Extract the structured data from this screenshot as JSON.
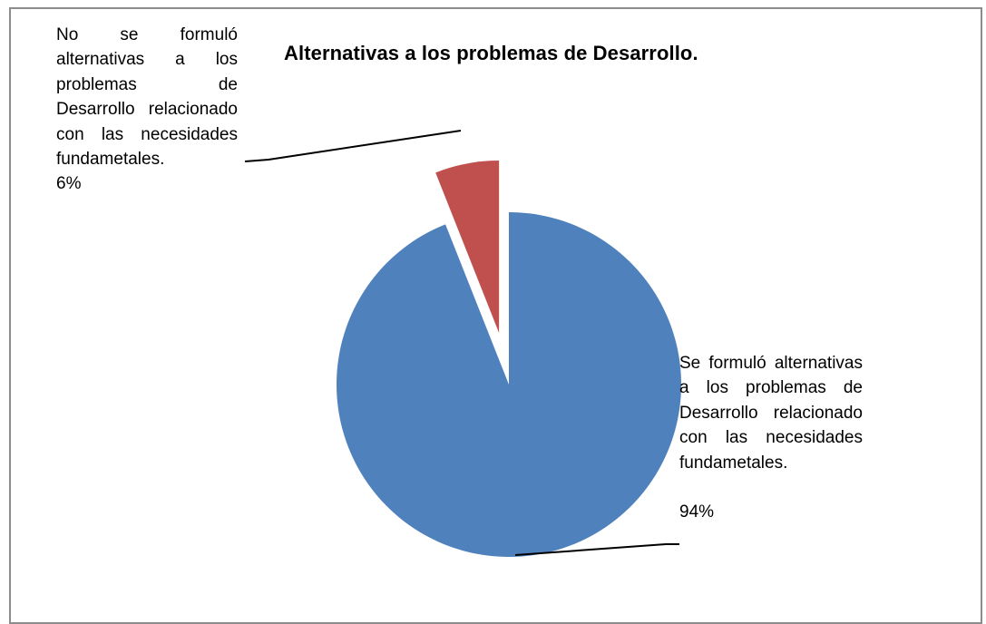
{
  "chart_data": {
    "type": "pie",
    "title": "Alternativas a los problemas de Desarrollo.",
    "slices": [
      {
        "label": "Se formuló alternativas a los problemas de Desarrollo relacionado con las necesidades fundametales.",
        "value": 94,
        "percent_label": "94%",
        "color": "#4F81BD",
        "exploded": false
      },
      {
        "label": "No se formuló alternativas a los problemas de Desarrollo relacionado con las necesidades fundametales.",
        "value": 6,
        "percent_label": "6%",
        "color": "#C0504D",
        "exploded": true
      }
    ],
    "start_angle_degrees": 0,
    "direction": "clockwise",
    "legend": "none",
    "data_labels": "outside with leader lines"
  }
}
